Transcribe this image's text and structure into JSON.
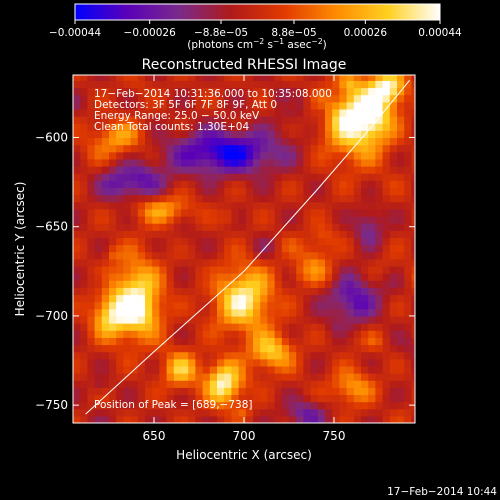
{
  "chart_data": {
    "type": "heatmap",
    "title": "Reconstructed RHESSI Image",
    "xlabel": "Heliocentric X (arcsec)",
    "ylabel": "Heliocentric Y (arcsec)",
    "xlim": [
      605,
      795
    ],
    "ylim": [
      -760,
      -565
    ],
    "x_ticks": [
      650,
      700,
      750
    ],
    "x_tick_labels": [
      "650",
      "700",
      "750"
    ],
    "y_ticks": [
      -600,
      -650,
      -700,
      -750
    ],
    "y_tick_labels": [
      "−600",
      "−650",
      "−700",
      "−750"
    ],
    "colorbar": {
      "range": [
        -0.00044,
        0.00044
      ],
      "ticks": [
        -0.00044,
        -0.00026,
        -8.8e-05,
        8.8e-05,
        0.00026,
        0.00044
      ],
      "tick_labels": [
        "−0.00044",
        "−0.00026",
        "−8.8e−05",
        "8.8e−05",
        "0.00026",
        "0.00044"
      ],
      "units_main": "(photons cm",
      "units_exp1": "−2",
      "units_mid": " s",
      "units_exp2": "−1",
      "units_mid2": " asec",
      "units_exp3": "−2",
      "units_end": ")",
      "colors": [
        "#0000ff",
        "#5a00b8",
        "#7a2a8a",
        "#b01a1a",
        "#e03a00",
        "#ff8a00",
        "#ffd020",
        "#ffffff"
      ]
    },
    "info_lines": [
      "17−Feb−2014 10:31:36.000 to 10:35:08.000",
      "Detectors: 3F 5F 6F 7F 8F 9F, Att 0",
      "Energy Range: 25.0 − 50.0 keV",
      "Clean     Total counts: 1.30E+04"
    ],
    "peak_label": "Position of Peak = [689,−738]",
    "peak": [
      689,
      -738
    ],
    "limb_curve": [
      [
        612,
        -755
      ],
      [
        650,
        -720
      ],
      [
        700,
        -675
      ],
      [
        740,
        -630
      ],
      [
        770,
        -595
      ],
      [
        792,
        -568
      ]
    ],
    "bright_sources": [
      {
        "x": 762,
        "y": -590,
        "sx": 18,
        "sy": 22,
        "amp": 1.0
      },
      {
        "x": 780,
        "y": -572,
        "sx": 10,
        "sy": 10,
        "amp": 0.9
      },
      {
        "x": 640,
        "y": -690,
        "sx": 14,
        "sy": 22,
        "amp": 0.95
      },
      {
        "x": 625,
        "y": -700,
        "sx": 10,
        "sy": 12,
        "amp": 0.7
      },
      {
        "x": 700,
        "y": -690,
        "sx": 16,
        "sy": 18,
        "amp": 0.95
      },
      {
        "x": 689,
        "y": -738,
        "sx": 10,
        "sy": 12,
        "amp": 1.0
      },
      {
        "x": 715,
        "y": -720,
        "sx": 12,
        "sy": 10,
        "amp": 0.75
      },
      {
        "x": 665,
        "y": -730,
        "sx": 10,
        "sy": 10,
        "amp": 0.7
      },
      {
        "x": 655,
        "y": -640,
        "sx": 16,
        "sy": 8,
        "amp": 0.55
      },
      {
        "x": 630,
        "y": -600,
        "sx": 14,
        "sy": 10,
        "amp": 0.55
      },
      {
        "x": 760,
        "y": -740,
        "sx": 12,
        "sy": 10,
        "amp": 0.55
      },
      {
        "x": 740,
        "y": -670,
        "sx": 10,
        "sy": 12,
        "amp": 0.5
      }
    ],
    "dark_regions": [
      {
        "x": 690,
        "y": -608,
        "sx": 30,
        "sy": 12,
        "amp": -0.9
      },
      {
        "x": 640,
        "y": -625,
        "sx": 18,
        "sy": 10,
        "amp": -0.5
      },
      {
        "x": 760,
        "y": -690,
        "sx": 14,
        "sy": 14,
        "amp": -0.6
      },
      {
        "x": 770,
        "y": -650,
        "sx": 8,
        "sy": 10,
        "amp": -0.5
      },
      {
        "x": 735,
        "y": -755,
        "sx": 12,
        "sy": 8,
        "amp": -0.5
      }
    ]
  },
  "footer_timestamp": "17−Feb−2014 10:44"
}
